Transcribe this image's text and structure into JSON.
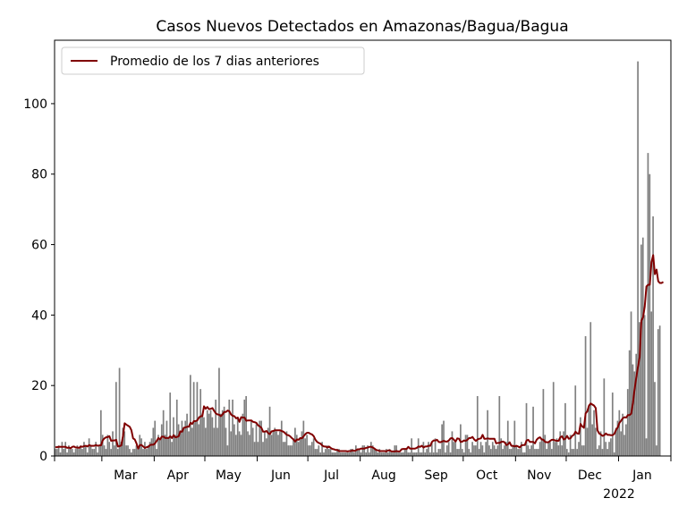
{
  "chart_data": {
    "type": "bar",
    "title": "Casos Nuevos Detectados en Amazonas/Bagua/Bagua",
    "xlabel": "",
    "ylabel": "",
    "ylim": [
      0,
      118
    ],
    "yticks": [
      0,
      20,
      40,
      60,
      80,
      100
    ],
    "x_start": "2021-02-01",
    "x_end": "2022-01-31",
    "xticks": [
      {
        "date": "2021-03-01",
        "label": "Mar"
      },
      {
        "date": "2021-04-01",
        "label": "Apr"
      },
      {
        "date": "2021-05-01",
        "label": "May"
      },
      {
        "date": "2021-06-01",
        "label": "Jun"
      },
      {
        "date": "2021-07-01",
        "label": "Jul"
      },
      {
        "date": "2021-08-01",
        "label": "Aug"
      },
      {
        "date": "2021-09-01",
        "label": "Sep"
      },
      {
        "date": "2021-10-01",
        "label": "Oct"
      },
      {
        "date": "2021-11-01",
        "label": "Nov"
      },
      {
        "date": "2021-12-01",
        "label": "Dec"
      },
      {
        "date": "2022-01-01",
        "label": "Jan"
      }
    ],
    "year_label": "2022",
    "legend": {
      "placement": "upper-left",
      "entries": [
        "Promedio de los 7 dias anteriores"
      ]
    },
    "grid": false,
    "bar_color": "#808080",
    "line_color": "#800000",
    "series": [
      {
        "type": "bar",
        "values": [
          2,
          2,
          3,
          1,
          4,
          2,
          4,
          1,
          3,
          2,
          2,
          1,
          2,
          3,
          2,
          3,
          2,
          4,
          3,
          1,
          5,
          3,
          2,
          2,
          4,
          1,
          3,
          13,
          6,
          3,
          2,
          6,
          4,
          2,
          7,
          3,
          21,
          2,
          25,
          4,
          8,
          7,
          3,
          3,
          2,
          1,
          2,
          2,
          3,
          2,
          6,
          5,
          2,
          4,
          2,
          3,
          4,
          5,
          8,
          10,
          2,
          6,
          5,
          9,
          13,
          6,
          10,
          5,
          18,
          4,
          11,
          6,
          16,
          9,
          7,
          10,
          8,
          10,
          12,
          7,
          23,
          8,
          21,
          10,
          21,
          9,
          19,
          12,
          11,
          8,
          13,
          12,
          13,
          11,
          8,
          16,
          8,
          25,
          12,
          13,
          14,
          8,
          3,
          16,
          7,
          16,
          9,
          6,
          11,
          7,
          6,
          12,
          16,
          17,
          7,
          6,
          10,
          8,
          4,
          9,
          4,
          10,
          10,
          4,
          7,
          5,
          8,
          14,
          6,
          7,
          8,
          7,
          6,
          7,
          10,
          4,
          4,
          7,
          3,
          3,
          3,
          5,
          8,
          6,
          4,
          5,
          7,
          10,
          5,
          6,
          3,
          3,
          4,
          5,
          2,
          2,
          3,
          1,
          4,
          1,
          2,
          3,
          2,
          2,
          1,
          1,
          1,
          2,
          2,
          1,
          1,
          1,
          1,
          1,
          1,
          2,
          2,
          1,
          3,
          2,
          2,
          1,
          3,
          3,
          1,
          3,
          1,
          4,
          3,
          2,
          2,
          1,
          2,
          1,
          1,
          1,
          2,
          1,
          2,
          1,
          1,
          3,
          3,
          1,
          1,
          1,
          1,
          2,
          2,
          1,
          1,
          5,
          1,
          1,
          1,
          5,
          1,
          1,
          4,
          1,
          2,
          4,
          1,
          4,
          1,
          5,
          1,
          2,
          2,
          9,
          10,
          1,
          3,
          4,
          1,
          7,
          4,
          4,
          2,
          2,
          9,
          2,
          1,
          6,
          6,
          2,
          1,
          4,
          3,
          3,
          17,
          2,
          4,
          3,
          1,
          4,
          13,
          3,
          2,
          4,
          3,
          2,
          3,
          17,
          5,
          2,
          3,
          4,
          10,
          2,
          2,
          3,
          10,
          3,
          2,
          2,
          4,
          1,
          1,
          15,
          3,
          2,
          3,
          14,
          2,
          2,
          2,
          4,
          5,
          19,
          6,
          2,
          4,
          4,
          2,
          21,
          4,
          5,
          3,
          7,
          3,
          7,
          15,
          2,
          1,
          6,
          2,
          2,
          20,
          2,
          4,
          11,
          3,
          3,
          34,
          8,
          14,
          38,
          9,
          13,
          8,
          2,
          3,
          7,
          2,
          22,
          4,
          2,
          4,
          5,
          18,
          1,
          8,
          10,
          13,
          7,
          12,
          6,
          9,
          19,
          30,
          41,
          26,
          24,
          29,
          112,
          38,
          60,
          62,
          40,
          5,
          86,
          80,
          41,
          68,
          21,
          3,
          36,
          37
        ]
      },
      {
        "type": "line",
        "name": "Promedio de los 7 dias anteriores",
        "values": [
          2.5,
          2.5,
          2.6,
          2.6,
          2.6,
          2.6,
          2.6,
          2.3,
          2.4,
          2.2,
          2.6,
          2.7,
          2.4,
          2.4,
          2.3,
          2.7,
          2.6,
          2.8,
          2.9,
          2.7,
          3.1,
          2.9,
          2.9,
          2.9,
          3.1,
          2.9,
          3.0,
          3.0,
          4.4,
          5.0,
          5.3,
          5.4,
          5.6,
          4.3,
          4.4,
          4.4,
          4.6,
          2.7,
          2.8,
          3.0,
          5.6,
          9.3,
          8.9,
          8.6,
          8.3,
          7.3,
          5.0,
          4.7,
          3.6,
          2.1,
          3.1,
          3.1,
          2.7,
          2.3,
          2.5,
          2.6,
          3.1,
          3.2,
          3.2,
          3.6,
          4.3,
          5.1,
          4.7,
          5.5,
          5.5,
          5.1,
          5.1,
          5.1,
          5.6,
          5.1,
          5.9,
          5.3,
          5.4,
          5.6,
          7.0,
          6.9,
          8.0,
          8.1,
          8.3,
          8.3,
          9.4,
          9.1,
          9.9,
          9.9,
          10.1,
          10.9,
          11.3,
          11.3,
          14.1,
          13.4,
          13.9,
          13.3,
          13.4,
          13.6,
          12.8,
          12.1,
          11.8,
          11.7,
          11.3,
          11.8,
          12.5,
          12.5,
          12.9,
          12.7,
          11.8,
          11.4,
          11.3,
          10.7,
          10.9,
          9.7,
          11.0,
          10.9,
          10.9,
          10.0,
          10.1,
          10.1,
          10.1,
          9.7,
          9.6,
          9.4,
          8.7,
          8.4,
          8.0,
          6.9,
          6.9,
          7.1,
          6.5,
          6.2,
          7.0,
          7.1,
          7.3,
          7.3,
          7.3,
          7.3,
          7.1,
          6.9,
          6.5,
          6.0,
          5.9,
          5.6,
          5.1,
          4.7,
          4.1,
          4.7,
          4.6,
          5.1,
          5.0,
          5.6,
          6.2,
          6.6,
          6.6,
          6.3,
          6.1,
          5.6,
          4.6,
          4.0,
          3.7,
          3.5,
          3.0,
          2.7,
          2.7,
          2.4,
          2.7,
          2.3,
          2.0,
          1.9,
          1.7,
          1.7,
          1.4,
          1.4,
          1.4,
          1.4,
          1.4,
          1.3,
          1.4,
          1.4,
          1.6,
          1.4,
          1.6,
          1.9,
          1.9,
          2.1,
          2.1,
          2.1,
          2.3,
          2.4,
          2.6,
          2.6,
          2.4,
          2.1,
          1.7,
          1.6,
          1.4,
          1.4,
          1.4,
          1.4,
          1.3,
          1.6,
          1.6,
          1.3,
          1.3,
          1.3,
          1.4,
          1.3,
          1.3,
          1.9,
          2.0,
          2.0,
          2.0,
          2.6,
          2.1,
          2.1,
          2.1,
          2.1,
          2.3,
          2.7,
          2.6,
          2.9,
          2.4,
          2.7,
          2.7,
          2.9,
          2.9,
          4.0,
          4.4,
          4.4,
          4.6,
          4.0,
          3.9,
          4.1,
          4.3,
          4.1,
          4.1,
          4.4,
          5.0,
          5.1,
          4.6,
          4.1,
          5.0,
          4.9,
          4.0,
          4.1,
          4.4,
          4.3,
          4.6,
          5.1,
          5.1,
          5.4,
          4.7,
          4.3,
          4.7,
          4.9,
          5.0,
          6.0,
          4.9,
          4.9,
          5.0,
          4.9,
          4.9,
          4.9,
          4.9,
          3.6,
          3.7,
          3.7,
          4.0,
          4.1,
          3.9,
          3.1,
          3.3,
          3.9,
          2.9,
          2.9,
          2.7,
          2.9,
          2.7,
          2.4,
          3.0,
          3.1,
          3.1,
          4.4,
          4.6,
          4.0,
          4.0,
          4.0,
          3.6,
          4.6,
          5.1,
          5.3,
          4.7,
          4.6,
          4.0,
          3.9,
          3.9,
          4.3,
          4.6,
          4.6,
          4.4,
          4.3,
          4.3,
          5.3,
          5.6,
          4.7,
          4.9,
          5.7,
          4.9,
          5.0,
          5.7,
          6.0,
          6.9,
          6.4,
          6.3,
          9.1,
          8.4,
          8.0,
          12.1,
          12.7,
          14.3,
          14.9,
          14.6,
          14.3,
          13.6,
          7.3,
          6.4,
          6.1,
          5.7,
          5.9,
          6.4,
          6.0,
          6.0,
          5.9,
          5.9,
          6.3,
          7.4,
          8.1,
          9.4,
          10.0,
          10.7,
          11.0,
          10.9,
          11.6,
          11.6,
          12.0,
          15.0,
          19.0,
          22.3,
          25.3,
          28.1,
          38.4,
          39.3,
          42.4,
          48.1,
          48.6,
          48.6,
          55.0,
          57.0,
          51.6,
          52.9,
          49.6,
          49.1,
          49.1,
          49.4
        ]
      }
    ]
  }
}
